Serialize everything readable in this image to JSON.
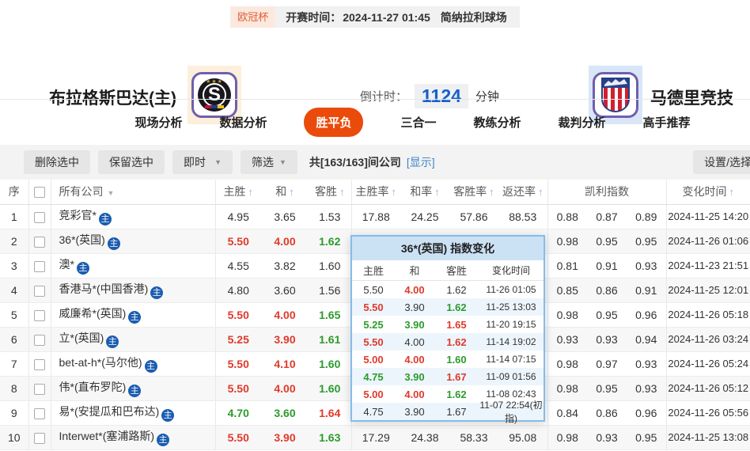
{
  "icons": {
    "sort_up": "↑",
    "caret_down": "▼",
    "stars": "★★★"
  },
  "colors": {
    "accent_orange": "#ea4b0b",
    "odds_up_red": "#e0392a",
    "odds_down_green": "#2b9b2b",
    "link_blue": "#4285c8",
    "sort_arrow_blue": "#8ab4e8",
    "badge_blue": "#1a5cb0",
    "countdown_blue": "#1a5dcc",
    "popup_border_blue": "#85bce8",
    "popup_header_bg": "#cbe2f5"
  },
  "top_bar": {
    "league": "欧冠杯",
    "kickoff_label": "开赛时间：",
    "kickoff_time": "2024-11-27 01:45",
    "venue": "简纳拉利球场"
  },
  "match": {
    "home_name": "布拉格斯巴达(主)",
    "away_name": "马德里竞技",
    "home_badge_letter": "S",
    "countdown_label": "倒计时：",
    "countdown_value": "1124",
    "countdown_unit": "分钟"
  },
  "tabs": [
    {
      "label": "现场分析",
      "active": false
    },
    {
      "label": "数据分析",
      "active": false
    },
    {
      "label": "胜平负",
      "active": true
    },
    {
      "label": "三合一",
      "active": false
    },
    {
      "label": "教练分析",
      "active": false
    },
    {
      "label": "裁判分析",
      "active": false
    },
    {
      "label": "高手推荐",
      "active": false
    }
  ],
  "toolbar": {
    "delete_selected": "删除选中",
    "keep_selected": "保留选中",
    "instant": "即时",
    "filter": "筛选",
    "count_text": "共[163/163]间公司",
    "show_link": "[显示]",
    "settings": "设置/选择"
  },
  "table": {
    "headers": {
      "no": "序",
      "company": "所有公司",
      "home": "主胜",
      "draw": "和",
      "away": "客胜",
      "home_rate": "主胜率",
      "draw_rate": "和率",
      "away_rate": "客胜率",
      "return_rate": "返还率",
      "kelly": "凯利指数",
      "change_time": "变化时间"
    },
    "badge_label": "主",
    "rows": [
      {
        "no": "1",
        "company": "竞彩官*",
        "odds": [
          {
            "v": "4.95",
            "c": "k"
          },
          {
            "v": "3.65",
            "c": "k"
          },
          {
            "v": "1.53",
            "c": "k"
          }
        ],
        "rates": [
          "17.88",
          "24.25",
          "57.86",
          "88.53"
        ],
        "kelly": [
          "0.88",
          "0.87",
          "0.89"
        ],
        "time": "2024-11-25 14:20"
      },
      {
        "no": "2",
        "company": "36*(英国)",
        "odds": [
          {
            "v": "5.50",
            "c": "r"
          },
          {
            "v": "4.00",
            "c": "r"
          },
          {
            "v": "1.62",
            "c": "g"
          }
        ],
        "rates": null,
        "kelly": [
          "0.98",
          "0.95",
          "0.95"
        ],
        "time": "2024-11-26 01:06"
      },
      {
        "no": "3",
        "company": "澳*",
        "odds": [
          {
            "v": "4.55",
            "c": "k"
          },
          {
            "v": "3.82",
            "c": "k"
          },
          {
            "v": "1.60",
            "c": "k"
          }
        ],
        "rates": null,
        "kelly": [
          "0.81",
          "0.91",
          "0.93"
        ],
        "time": "2024-11-23 21:51"
      },
      {
        "no": "4",
        "company": "香港马*(中国香港)",
        "odds": [
          {
            "v": "4.80",
            "c": "k"
          },
          {
            "v": "3.60",
            "c": "k"
          },
          {
            "v": "1.56",
            "c": "k"
          }
        ],
        "rates": null,
        "kelly": [
          "0.85",
          "0.86",
          "0.91"
        ],
        "time": "2024-11-25 12:01"
      },
      {
        "no": "5",
        "company": "威廉希*(英国)",
        "odds": [
          {
            "v": "5.50",
            "c": "r"
          },
          {
            "v": "4.00",
            "c": "r"
          },
          {
            "v": "1.65",
            "c": "g"
          }
        ],
        "rates": null,
        "kelly": [
          "0.98",
          "0.95",
          "0.96"
        ],
        "time": "2024-11-26 05:18"
      },
      {
        "no": "6",
        "company": "立*(英国)",
        "odds": [
          {
            "v": "5.25",
            "c": "r"
          },
          {
            "v": "3.90",
            "c": "r"
          },
          {
            "v": "1.61",
            "c": "g"
          }
        ],
        "rates": null,
        "kelly": [
          "0.93",
          "0.93",
          "0.94"
        ],
        "time": "2024-11-26 03:24"
      },
      {
        "no": "7",
        "company": "bet-at-h*(马尔他)",
        "odds": [
          {
            "v": "5.50",
            "c": "r"
          },
          {
            "v": "4.10",
            "c": "r"
          },
          {
            "v": "1.60",
            "c": "g"
          }
        ],
        "rates": null,
        "kelly": [
          "0.98",
          "0.97",
          "0.93"
        ],
        "time": "2024-11-26 05:24"
      },
      {
        "no": "8",
        "company": "伟*(直布罗陀)",
        "odds": [
          {
            "v": "5.50",
            "c": "r"
          },
          {
            "v": "4.00",
            "c": "r"
          },
          {
            "v": "1.60",
            "c": "g"
          }
        ],
        "rates": null,
        "kelly": [
          "0.98",
          "0.95",
          "0.93"
        ],
        "time": "2024-11-26 05:12"
      },
      {
        "no": "9",
        "company": "易*(安提瓜和巴布达)",
        "odds": [
          {
            "v": "4.70",
            "c": "g"
          },
          {
            "v": "3.60",
            "c": "g"
          },
          {
            "v": "1.64",
            "c": "r"
          }
        ],
        "rates": null,
        "kelly": [
          "0.84",
          "0.86",
          "0.96"
        ],
        "time": "2024-11-26 05:56"
      },
      {
        "no": "10",
        "company": "Interwet*(塞浦路斯)",
        "odds": [
          {
            "v": "5.50",
            "c": "r"
          },
          {
            "v": "3.90",
            "c": "r"
          },
          {
            "v": "1.63",
            "c": "g"
          }
        ],
        "rates": [
          "17.29",
          "24.38",
          "58.33",
          "95.08"
        ],
        "kelly": [
          "0.98",
          "0.93",
          "0.95"
        ],
        "time": "2024-11-25 13:08"
      }
    ]
  },
  "popup": {
    "title": "36*(英国) 指数变化",
    "headers": [
      "主胜",
      "和",
      "客胜",
      "变化时间"
    ],
    "rows": [
      {
        "home": {
          "v": "5.50",
          "c": "k"
        },
        "draw": {
          "v": "4.00",
          "c": "r"
        },
        "away": {
          "v": "1.62",
          "c": "k"
        },
        "time": "11-26 01:05"
      },
      {
        "home": {
          "v": "5.50",
          "c": "r"
        },
        "draw": {
          "v": "3.90",
          "c": "k"
        },
        "away": {
          "v": "1.62",
          "c": "g"
        },
        "time": "11-25 13:03"
      },
      {
        "home": {
          "v": "5.25",
          "c": "g"
        },
        "draw": {
          "v": "3.90",
          "c": "g"
        },
        "away": {
          "v": "1.65",
          "c": "r"
        },
        "time": "11-20 19:15"
      },
      {
        "home": {
          "v": "5.50",
          "c": "r"
        },
        "draw": {
          "v": "4.00",
          "c": "k"
        },
        "away": {
          "v": "1.62",
          "c": "r"
        },
        "time": "11-14 19:02"
      },
      {
        "home": {
          "v": "5.00",
          "c": "r"
        },
        "draw": {
          "v": "4.00",
          "c": "r"
        },
        "away": {
          "v": "1.60",
          "c": "g"
        },
        "time": "11-14 07:15"
      },
      {
        "home": {
          "v": "4.75",
          "c": "g"
        },
        "draw": {
          "v": "3.90",
          "c": "g"
        },
        "away": {
          "v": "1.67",
          "c": "r"
        },
        "time": "11-09 01:56"
      },
      {
        "home": {
          "v": "5.00",
          "c": "r"
        },
        "draw": {
          "v": "4.00",
          "c": "r"
        },
        "away": {
          "v": "1.62",
          "c": "g"
        },
        "time": "11-08 02:43"
      },
      {
        "home": {
          "v": "4.75",
          "c": "k"
        },
        "draw": {
          "v": "3.90",
          "c": "k"
        },
        "away": {
          "v": "1.67",
          "c": "k"
        },
        "time": "11-07 22:54(初指)"
      }
    ]
  }
}
